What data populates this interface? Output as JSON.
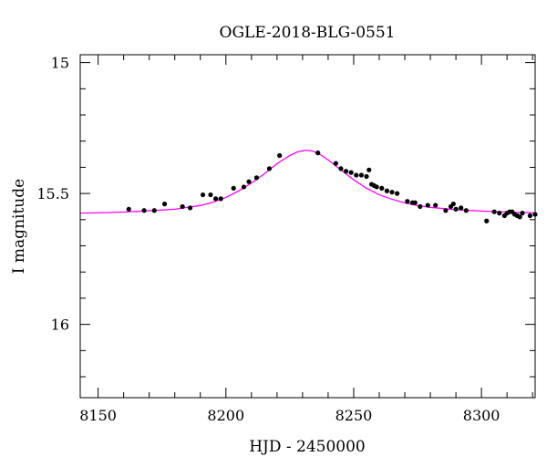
{
  "chart_data": {
    "type": "scatter",
    "title": "OGLE-2018-BLG-0551",
    "xlabel": "HJD - 2450000",
    "ylabel": "I magnitude",
    "xlim": [
      8143,
      8321
    ],
    "ylim": [
      16.28,
      14.97
    ],
    "y_inverted": true,
    "grid": false,
    "x_ticks": [
      8150,
      8200,
      8250,
      8300
    ],
    "x_tick_labels": [
      "8150",
      "8200",
      "8250",
      "8300"
    ],
    "y_ticks": [
      15,
      15.5,
      16
    ],
    "y_tick_labels": [
      "15",
      "15.5",
      "16"
    ],
    "x_minor_step": 10,
    "y_minor_step": 0.1,
    "colors": {
      "points": "#000000",
      "model": "#ff00ff",
      "frame": "#000000"
    },
    "series": [
      {
        "kind": "points",
        "x": [
          8162,
          8168,
          8172,
          8176,
          8183,
          8186,
          8191,
          8194,
          8196,
          8198,
          8203,
          8207,
          8209,
          8212,
          8217,
          8221,
          8236,
          8243,
          8245,
          8247,
          8249,
          8251,
          8253,
          8255,
          8256,
          8257,
          8258,
          8259,
          8261,
          8263,
          8265,
          8267,
          8271,
          8273,
          8274,
          8276,
          8279,
          8282,
          8286,
          8288,
          8289,
          8290,
          8292,
          8294,
          8302,
          8305,
          8307,
          8309,
          8310,
          8311,
          8312,
          8313,
          8314,
          8315,
          8316,
          8319,
          8321
        ],
        "y": [
          15.56,
          15.565,
          15.565,
          15.54,
          15.55,
          15.555,
          15.505,
          15.505,
          15.52,
          15.52,
          15.48,
          15.475,
          15.455,
          15.44,
          15.405,
          15.355,
          15.345,
          15.385,
          15.405,
          15.415,
          15.42,
          15.43,
          15.43,
          15.435,
          15.41,
          15.465,
          15.47,
          15.475,
          15.48,
          15.49,
          15.495,
          15.5,
          15.53,
          15.535,
          15.535,
          15.55,
          15.545,
          15.545,
          15.565,
          15.55,
          15.54,
          15.56,
          15.555,
          15.565,
          15.605,
          15.57,
          15.575,
          15.585,
          15.575,
          15.57,
          15.57,
          15.58,
          15.585,
          15.59,
          15.575,
          15.585,
          15.58
        ]
      },
      {
        "kind": "model",
        "x": [
          8143,
          8150,
          8160,
          8170,
          8180,
          8190,
          8195,
          8200,
          8205,
          8210,
          8215,
          8220,
          8225,
          8228,
          8231,
          8234,
          8237,
          8240,
          8245,
          8250,
          8255,
          8260,
          8265,
          8270,
          8275,
          8280,
          8290,
          8300,
          8310,
          8321
        ],
        "y": [
          15.575,
          15.574,
          15.571,
          15.566,
          15.56,
          15.546,
          15.533,
          15.515,
          15.49,
          15.46,
          15.425,
          15.386,
          15.355,
          15.341,
          15.335,
          15.338,
          15.352,
          15.372,
          15.41,
          15.448,
          15.48,
          15.505,
          15.522,
          15.536,
          15.546,
          15.553,
          15.562,
          15.567,
          15.571,
          15.574
        ]
      }
    ]
  }
}
